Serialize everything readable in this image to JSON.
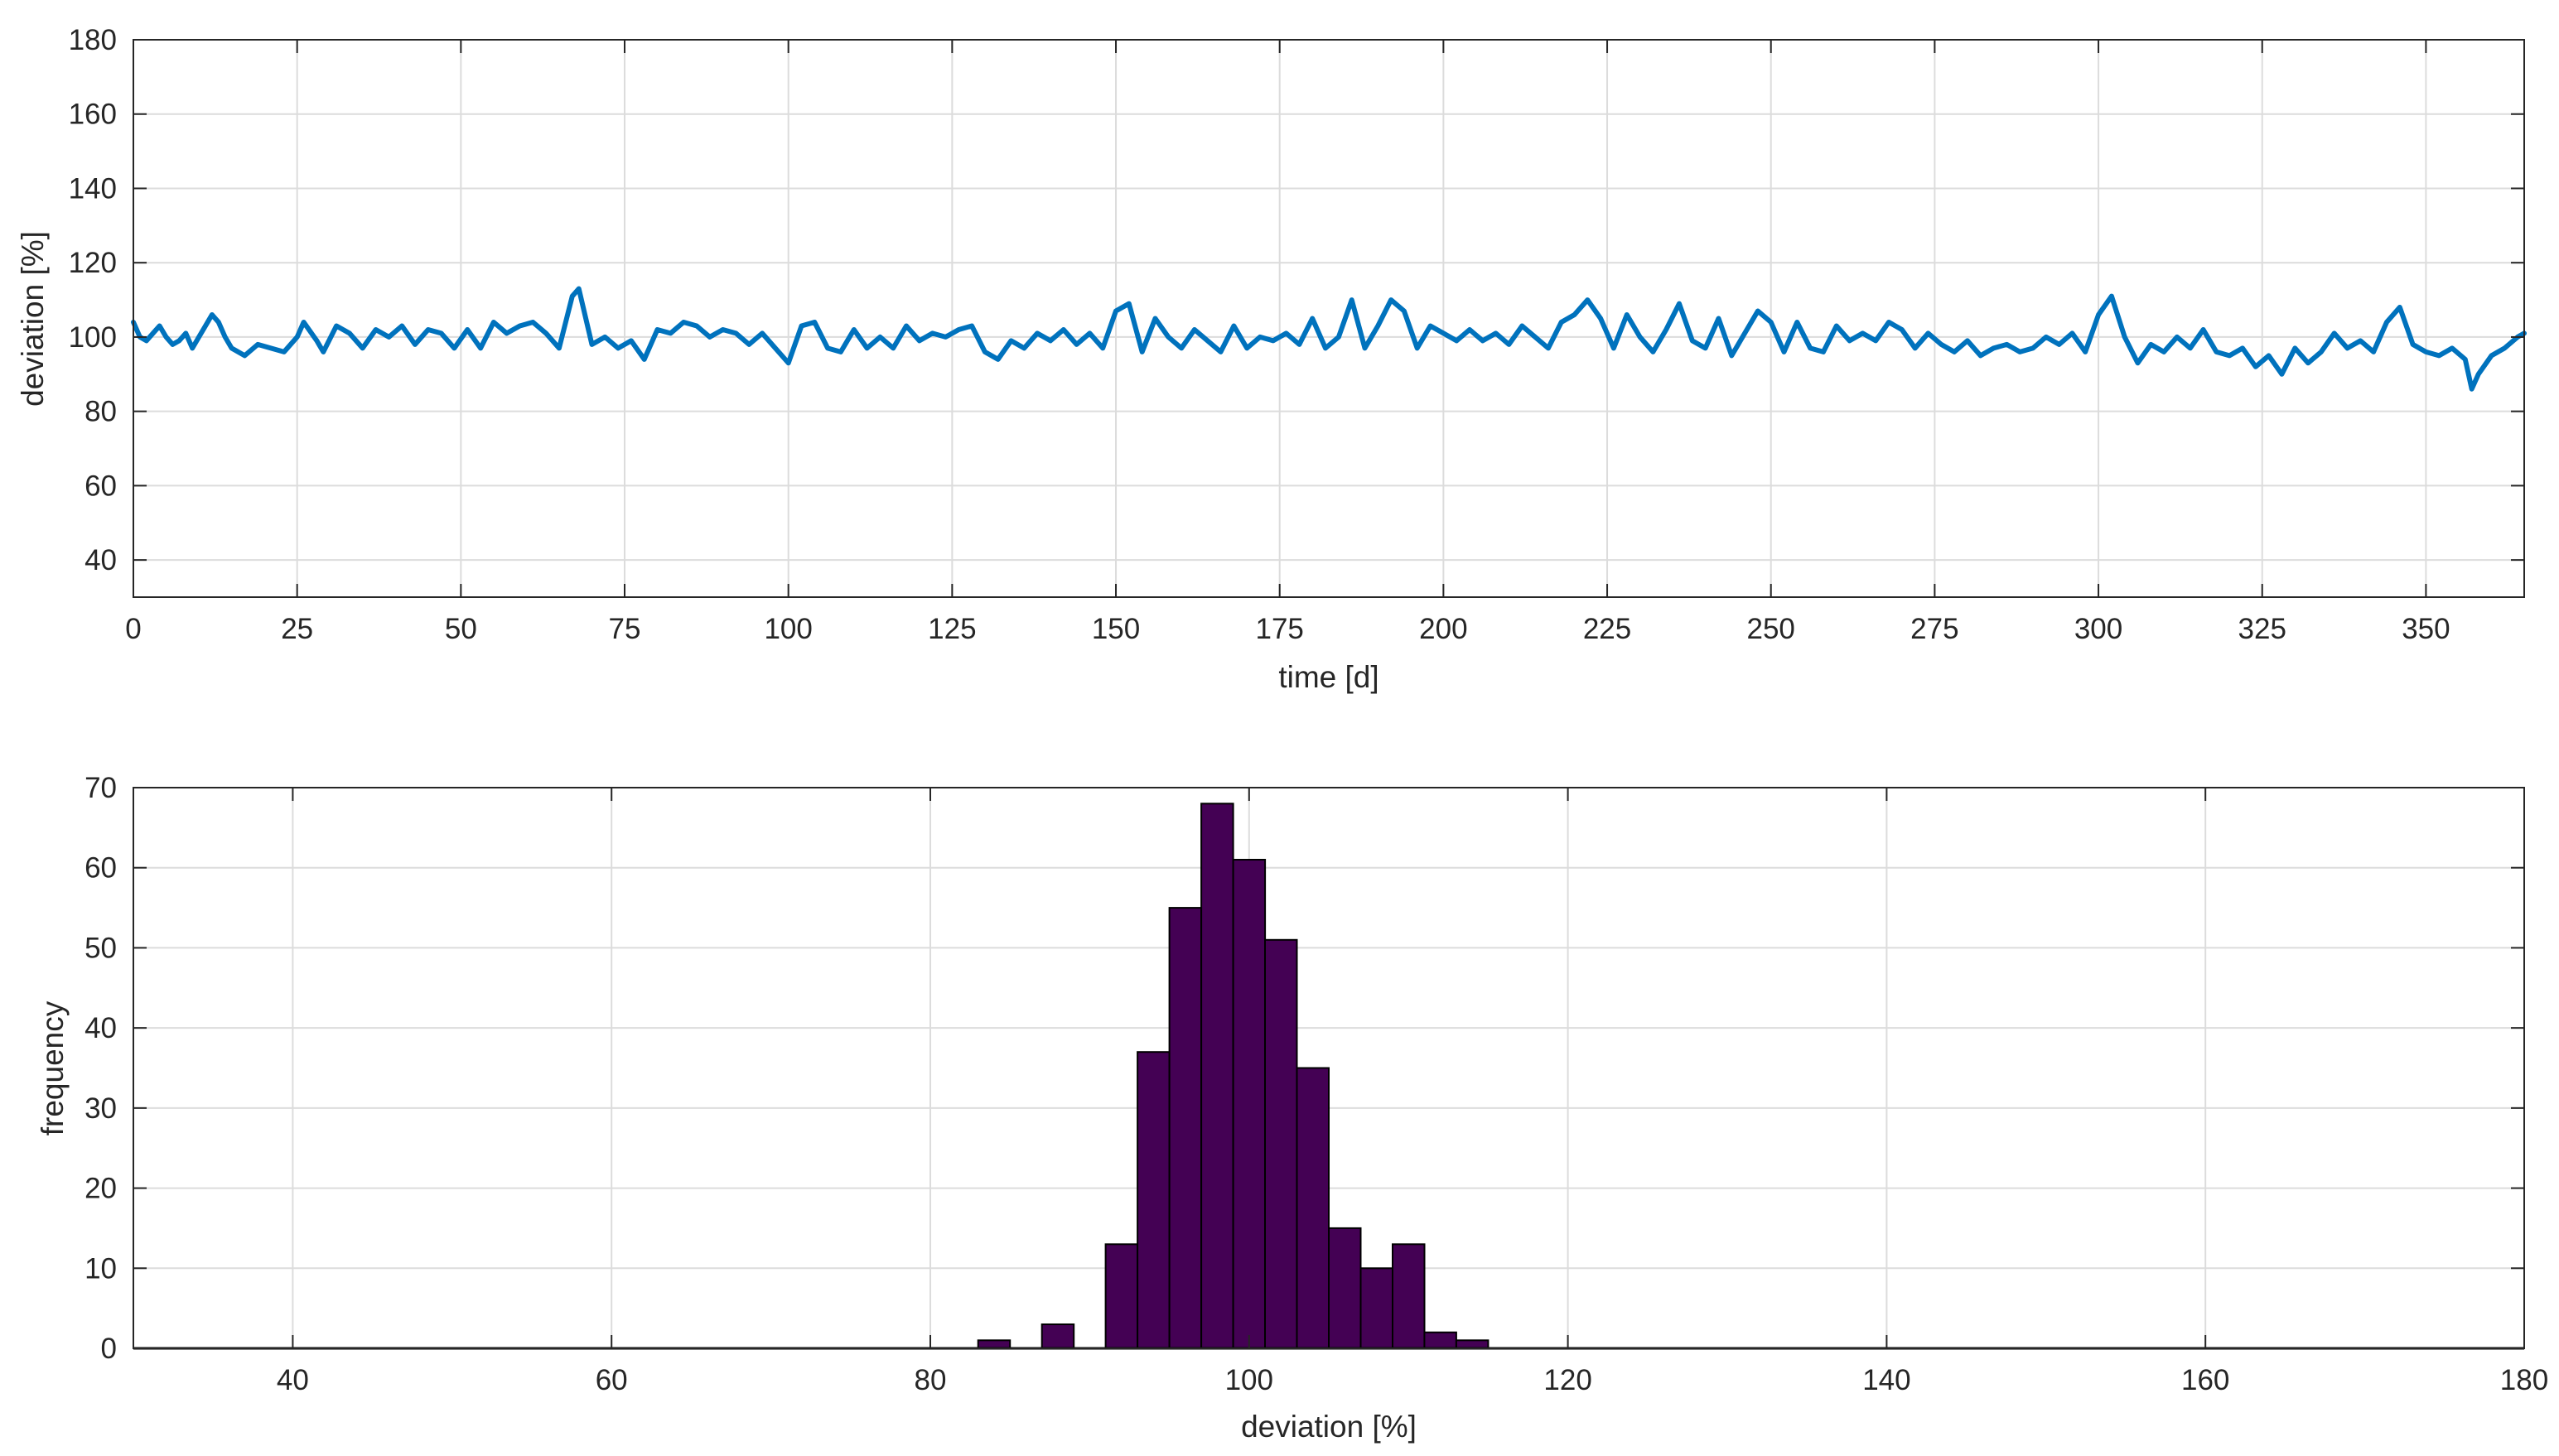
{
  "chart_data": [
    {
      "type": "line",
      "xlabel": "time [d]",
      "ylabel": "deviation [%]",
      "xlim": [
        0,
        365
      ],
      "ylim": [
        30,
        180
      ],
      "xticks": [
        0,
        25,
        50,
        75,
        100,
        125,
        150,
        175,
        200,
        225,
        250,
        275,
        300,
        325,
        350
      ],
      "yticks": [
        40,
        60,
        80,
        100,
        120,
        140,
        160,
        180
      ],
      "grid": true,
      "color": "#0072BD",
      "series": [
        {
          "x": [
            0,
            1,
            2,
            3,
            4,
            5,
            6,
            7,
            8,
            9,
            10,
            11,
            12,
            13,
            14,
            15,
            17,
            19,
            21,
            23,
            25,
            26,
            28,
            29,
            31,
            33,
            35,
            37,
            39,
            41,
            43,
            45,
            47,
            49,
            51,
            53,
            55,
            57,
            59,
            61,
            63,
            65,
            67,
            68,
            70,
            72,
            74,
            76,
            78,
            80,
            82,
            84,
            86,
            88,
            90,
            92,
            94,
            96,
            98,
            100,
            102,
            104,
            106,
            108,
            110,
            112,
            114,
            116,
            118,
            120,
            122,
            124,
            126,
            128,
            130,
            132,
            134,
            136,
            138,
            140,
            142,
            144,
            146,
            148,
            150,
            152,
            154,
            156,
            158,
            160,
            162,
            164,
            166,
            168,
            170,
            172,
            174,
            176,
            178,
            180,
            182,
            184,
            186,
            188,
            190,
            192,
            194,
            196,
            198,
            200,
            202,
            204,
            206,
            208,
            210,
            212,
            214,
            216,
            218,
            220,
            222,
            224,
            226,
            228,
            230,
            232,
            234,
            236,
            238,
            240,
            242,
            244,
            246,
            248,
            250,
            252,
            254,
            256,
            258,
            260,
            262,
            264,
            266,
            268,
            270,
            272,
            274,
            276,
            278,
            280,
            282,
            284,
            286,
            288,
            290,
            292,
            294,
            296,
            298,
            300,
            302,
            304,
            306,
            308,
            310,
            312,
            314,
            316,
            318,
            320,
            322,
            324,
            326,
            328,
            330,
            332,
            334,
            336,
            338,
            340,
            342,
            344,
            346,
            348,
            350,
            352,
            354,
            356,
            357,
            358,
            360,
            362,
            364,
            365
          ],
          "y": [
            104,
            100,
            99,
            101,
            103,
            100,
            98,
            99,
            101,
            97,
            100,
            103,
            106,
            104,
            100,
            97,
            95,
            98,
            97,
            96,
            100,
            104,
            99,
            96,
            103,
            101,
            97,
            102,
            100,
            103,
            98,
            102,
            101,
            97,
            102,
            97,
            104,
            101,
            103,
            104,
            101,
            97,
            111,
            113,
            98,
            100,
            97,
            99,
            94,
            102,
            101,
            104,
            103,
            100,
            102,
            101,
            98,
            101,
            97,
            93,
            103,
            104,
            97,
            96,
            102,
            97,
            100,
            97,
            103,
            99,
            101,
            100,
            102,
            103,
            96,
            94,
            99,
            97,
            101,
            99,
            102,
            98,
            101,
            97,
            107,
            109,
            96,
            105,
            100,
            97,
            102,
            99,
            96,
            103,
            97,
            100,
            99,
            101,
            98,
            105,
            97,
            100,
            110,
            97,
            103,
            110,
            107,
            97,
            103,
            101,
            99,
            102,
            99,
            101,
            98,
            103,
            100,
            97,
            104,
            106,
            110,
            105,
            97,
            106,
            100,
            96,
            102,
            109,
            99,
            97,
            105,
            95,
            101,
            107,
            104,
            96,
            104,
            97,
            96,
            103,
            99,
            101,
            99,
            104,
            102,
            97,
            101,
            98,
            96,
            99,
            95,
            97,
            98,
            96,
            97,
            100,
            98,
            101,
            96,
            106,
            111,
            100,
            93,
            98,
            96,
            100,
            97,
            102,
            96,
            95,
            97,
            92,
            95,
            90,
            97,
            93,
            96,
            101,
            97,
            99,
            96,
            104,
            108,
            98,
            96,
            95,
            97,
            94,
            86,
            90,
            95,
            97,
            100,
            101
          ]
        }
      ]
    },
    {
      "type": "bar",
      "xlabel": "deviation [%]",
      "ylabel": "frequency",
      "xlim": [
        30,
        180
      ],
      "ylim": [
        0,
        70
      ],
      "xticks": [
        40,
        60,
        80,
        100,
        120,
        140,
        160,
        180
      ],
      "yticks": [
        0,
        10,
        20,
        30,
        40,
        50,
        60,
        70
      ],
      "grid": true,
      "color": "#440154",
      "bin_width": 2,
      "bin_starts": [
        83,
        85,
        87,
        89,
        91,
        93,
        95,
        97,
        99,
        101,
        103,
        105,
        107,
        109,
        111,
        113
      ],
      "values": [
        1,
        0,
        3,
        0,
        13,
        37,
        55,
        68,
        61,
        51,
        35,
        15,
        10,
        13,
        2,
        1
      ]
    }
  ]
}
